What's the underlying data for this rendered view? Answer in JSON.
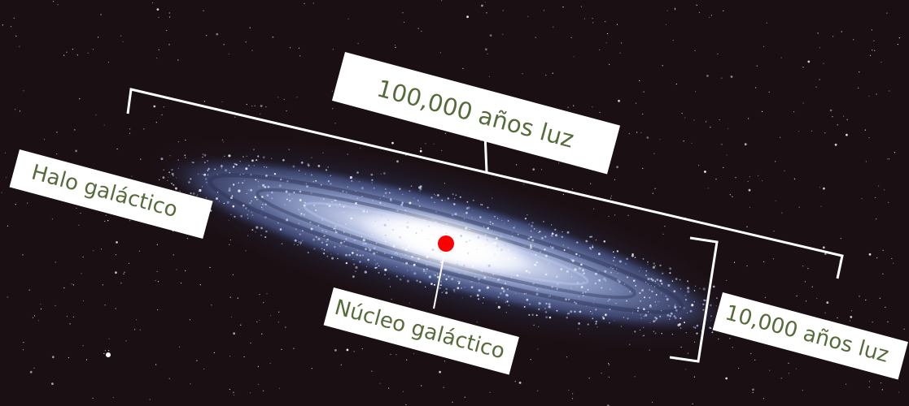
{
  "labels": {
    "disk_width": "100,000 años luz",
    "halo": "Halo galáctico",
    "nucleus": "Núcleo galáctico",
    "disk_thickness": "10,000 años luz"
  },
  "colors": {
    "background": "#1a0f12",
    "label_text": "#556b3a",
    "label_box": "#ffffff",
    "marker": "#ff0000",
    "galaxy_glow": "#9fb3e6"
  }
}
